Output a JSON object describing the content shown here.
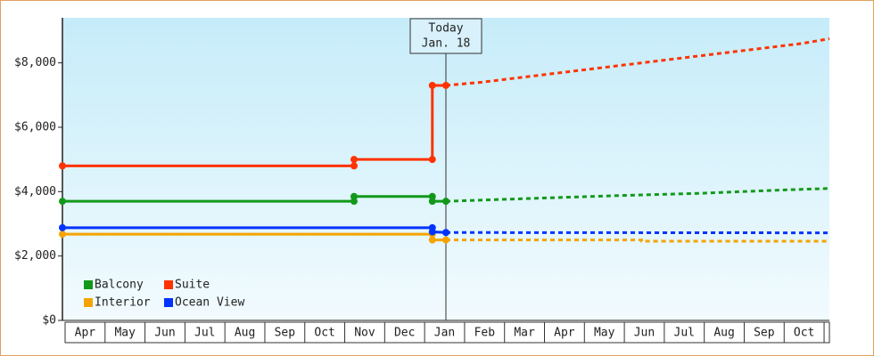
{
  "chart_data": {
    "type": "step-line",
    "annotation": {
      "lines": [
        "Today",
        "Jan. 18"
      ],
      "x": 9.6
    },
    "xlim": [
      0,
      19.2
    ],
    "xtick_labels": [
      "Apr",
      "May",
      "Jun",
      "Jul",
      "Aug",
      "Sep",
      "Oct",
      "Nov",
      "Dec",
      "Jan",
      "Feb",
      "Mar",
      "Apr",
      "May",
      "Jun",
      "Jul",
      "Aug",
      "Sep",
      "Oct"
    ],
    "ylim": [
      0,
      9400
    ],
    "yticks": [
      {
        "value": 0,
        "label": "$0"
      },
      {
        "value": 2000,
        "label": "$2,000"
      },
      {
        "value": 4000,
        "label": "$4,000"
      },
      {
        "value": 6000,
        "label": "$6,000"
      },
      {
        "value": 8000,
        "label": "$8,000"
      }
    ],
    "legend": "lower left",
    "series": [
      {
        "name": "Balcony",
        "color": "#12991a",
        "x": [
          0,
          7.3,
          7.3,
          9.26,
          9.26,
          9.6,
          12,
          14,
          16,
          18,
          19.2
        ],
        "values": [
          3700,
          3700,
          3850,
          3850,
          3700,
          3700,
          3800,
          3880,
          3950,
          4050,
          4100
        ]
      },
      {
        "name": "Suite",
        "color": "#ff3300",
        "x": [
          0,
          7.3,
          7.3,
          9.26,
          9.26,
          9.6,
          10.5,
          11.5,
          12.5,
          13.5,
          14.5,
          15.5,
          16.5,
          17.5,
          18.5,
          19.2
        ],
        "values": [
          4800,
          4800,
          5000,
          5000,
          7300,
          7300,
          7400,
          7550,
          7700,
          7850,
          8000,
          8150,
          8300,
          8450,
          8600,
          8750
        ]
      },
      {
        "name": "Interior",
        "color": "#f5a300",
        "x": [
          0,
          9.26,
          9.26,
          9.6,
          14.5,
          14.5,
          19.2
        ],
        "values": [
          2680,
          2680,
          2500,
          2500,
          2500,
          2460,
          2460
        ]
      },
      {
        "name": "Ocean View",
        "color": "#0033ff",
        "x": [
          0,
          9.26,
          9.26,
          9.6,
          19.2
        ],
        "values": [
          2880,
          2880,
          2750,
          2730,
          2720
        ]
      }
    ]
  }
}
